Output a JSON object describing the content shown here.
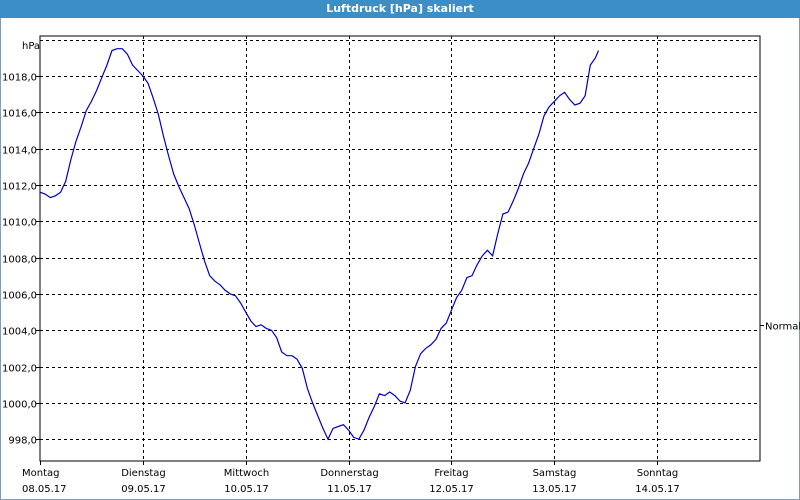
{
  "window": {
    "title": "Luftdruck [hPa] skaliert"
  },
  "colors": {
    "title_bar": "#3b8fc6",
    "series_line": "#0000c8",
    "grid": "#000000"
  },
  "chart_data": {
    "type": "line",
    "title": "Luftdruck [hPa] skaliert",
    "ylabel": "hPa",
    "ylim": [
      996.8,
      1020.2
    ],
    "xlim": [
      0,
      7
    ],
    "grid": true,
    "y_ticks": [
      "998,0",
      "1000,0",
      "1002,0",
      "1004,0",
      "1006,0",
      "1008,0",
      "1010,0",
      "1012,0",
      "1014,0",
      "1016,0",
      "1018,0"
    ],
    "y_tick_values": [
      998,
      1000,
      1002,
      1004,
      1006,
      1008,
      1010,
      1012,
      1014,
      1016,
      1018
    ],
    "x_ticks": [
      {
        "day": "Montag",
        "date": "08.05.17"
      },
      {
        "day": "Dienstag",
        "date": "09.05.17"
      },
      {
        "day": "Mittwoch",
        "date": "10.05.17"
      },
      {
        "day": "Donnerstag",
        "date": "11.05.17"
      },
      {
        "day": "Freitag",
        "date": "12.05.17"
      },
      {
        "day": "Samstag",
        "date": "13.05.17"
      },
      {
        "day": "Sonntag",
        "date": "14.05.17"
      }
    ],
    "reference": {
      "label": "Normal",
      "value": 1004.3
    },
    "series": [
      {
        "values": [
          [
            0.0,
            1011.6
          ],
          [
            0.05,
            1011.5
          ],
          [
            0.1,
            1011.3
          ],
          [
            0.15,
            1011.4
          ],
          [
            0.2,
            1011.6
          ],
          [
            0.25,
            1012.2
          ],
          [
            0.3,
            1013.4
          ],
          [
            0.35,
            1014.4
          ],
          [
            0.4,
            1015.2
          ],
          [
            0.45,
            1016.1
          ],
          [
            0.5,
            1016.6
          ],
          [
            0.55,
            1017.2
          ],
          [
            0.6,
            1017.9
          ],
          [
            0.65,
            1018.6
          ],
          [
            0.7,
            1019.4
          ],
          [
            0.75,
            1019.5
          ],
          [
            0.8,
            1019.5
          ],
          [
            0.85,
            1019.2
          ],
          [
            0.9,
            1018.6
          ],
          [
            0.95,
            1018.3
          ],
          [
            1.0,
            1018.0
          ],
          [
            1.05,
            1017.6
          ],
          [
            1.1,
            1016.8
          ],
          [
            1.15,
            1015.9
          ],
          [
            1.2,
            1014.7
          ],
          [
            1.25,
            1013.6
          ],
          [
            1.3,
            1012.6
          ],
          [
            1.35,
            1011.9
          ],
          [
            1.4,
            1011.3
          ],
          [
            1.45,
            1010.7
          ],
          [
            1.5,
            1009.8
          ],
          [
            1.55,
            1008.8
          ],
          [
            1.6,
            1007.8
          ],
          [
            1.65,
            1007.0
          ],
          [
            1.7,
            1006.7
          ],
          [
            1.75,
            1006.5
          ],
          [
            1.8,
            1006.2
          ],
          [
            1.85,
            1006.0
          ],
          [
            1.9,
            1005.9
          ],
          [
            1.95,
            1005.5
          ],
          [
            2.0,
            1005.0
          ],
          [
            2.05,
            1004.5
          ],
          [
            2.1,
            1004.2
          ],
          [
            2.15,
            1004.3
          ],
          [
            2.2,
            1004.1
          ],
          [
            2.25,
            1004.0
          ],
          [
            2.3,
            1003.6
          ],
          [
            2.35,
            1002.8
          ],
          [
            2.4,
            1002.6
          ],
          [
            2.45,
            1002.6
          ],
          [
            2.5,
            1002.4
          ],
          [
            2.55,
            1001.9
          ],
          [
            2.6,
            1000.8
          ],
          [
            2.65,
            1000.0
          ],
          [
            2.7,
            999.3
          ],
          [
            2.75,
            998.6
          ],
          [
            2.8,
            998.0
          ],
          [
            2.85,
            998.6
          ],
          [
            2.9,
            998.7
          ],
          [
            2.95,
            998.8
          ],
          [
            3.0,
            998.5
          ],
          [
            3.05,
            998.1
          ],
          [
            3.1,
            998.0
          ],
          [
            3.15,
            998.5
          ],
          [
            3.2,
            999.2
          ],
          [
            3.25,
            999.8
          ],
          [
            3.3,
            1000.5
          ],
          [
            3.35,
            1000.4
          ],
          [
            3.4,
            1000.6
          ],
          [
            3.45,
            1000.4
          ],
          [
            3.5,
            1000.1
          ],
          [
            3.55,
            1000.0
          ],
          [
            3.6,
            1000.7
          ],
          [
            3.65,
            1002.0
          ],
          [
            3.7,
            1002.7
          ],
          [
            3.75,
            1003.0
          ],
          [
            3.8,
            1003.2
          ],
          [
            3.85,
            1003.5
          ],
          [
            3.9,
            1004.1
          ],
          [
            3.95,
            1004.4
          ],
          [
            4.0,
            1005.1
          ],
          [
            4.05,
            1005.8
          ],
          [
            4.1,
            1006.2
          ],
          [
            4.15,
            1006.9
          ],
          [
            4.2,
            1007.0
          ],
          [
            4.25,
            1007.6
          ],
          [
            4.3,
            1008.1
          ],
          [
            4.35,
            1008.4
          ],
          [
            4.4,
            1008.1
          ],
          [
            4.45,
            1009.3
          ],
          [
            4.5,
            1010.4
          ],
          [
            4.55,
            1010.5
          ],
          [
            4.6,
            1011.1
          ],
          [
            4.65,
            1011.8
          ],
          [
            4.7,
            1012.6
          ],
          [
            4.75,
            1013.2
          ],
          [
            4.8,
            1014.0
          ],
          [
            4.85,
            1014.8
          ],
          [
            4.9,
            1015.8
          ],
          [
            4.95,
            1016.3
          ],
          [
            5.0,
            1016.6
          ],
          [
            5.05,
            1016.9
          ],
          [
            5.1,
            1017.1
          ],
          [
            5.15,
            1016.7
          ],
          [
            5.2,
            1016.4
          ],
          [
            5.25,
            1016.5
          ],
          [
            5.3,
            1016.9
          ],
          [
            5.35,
            1018.6
          ],
          [
            5.4,
            1019.0
          ],
          [
            5.43,
            1019.4
          ]
        ]
      }
    ]
  }
}
